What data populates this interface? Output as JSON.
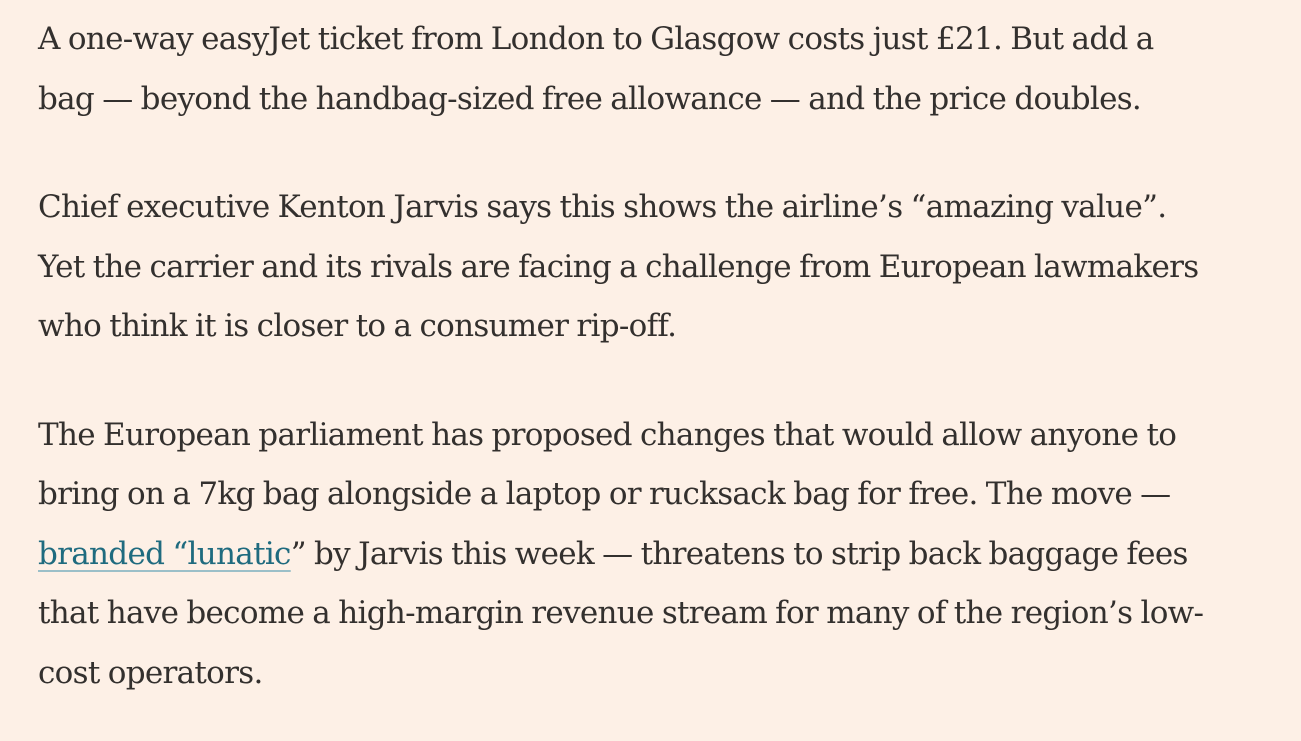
{
  "article": {
    "paragraphs": [
      {
        "lines": [
          "A one-way easyJet ticket from London to Glasgow costs just £21. But add a",
          "bag — beyond the handbag-sized free allowance — and the price doubles."
        ]
      },
      {
        "lines": [
          "Chief executive Kenton Jarvis says this shows the airline’s “amazing value”.",
          "Yet the carrier and its rivals are facing a challenge from European lawmakers",
          "who think it is closer to a consumer rip-off."
        ]
      },
      {
        "lines": [
          "The European parliament has proposed changes that would allow anyone to",
          "bring on a 7kg bag alongside a laptop or rucksack bag for free. The move —"
        ],
        "link_text": "branded “lunatic",
        "after_link": "” by Jarvis this week — threatens to strip back baggage fees",
        "lines_after": [
          "that have become a high-margin revenue stream for many of the region’s low-",
          "cost operators."
        ]
      }
    ]
  }
}
